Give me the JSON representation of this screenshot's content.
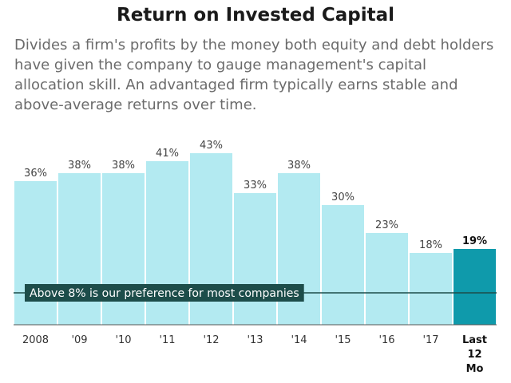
{
  "title": "Return on Invested Capital",
  "subtitle": "Divides a firm's profits by the money both equity and debt holders have given the company to gauge management's capital allocation skill. An advantaged firm typically earns stable and above-average returns over time.",
  "colors": {
    "bar": "#b3eaf1",
    "highlight": "#0f9aab",
    "reference_line": "#1d4d4a",
    "annotation_bg": "#1d4d4a"
  },
  "chart_data": {
    "type": "bar",
    "title": "Return on Invested Capital",
    "categories": [
      "2008",
      "'09",
      "'10",
      "'11",
      "'12",
      "'13",
      "'14",
      "'15",
      "'16",
      "'17",
      "Last 12 Mo"
    ],
    "category_lines": [
      [
        "2008"
      ],
      [
        "'09"
      ],
      [
        "'10"
      ],
      [
        "'11"
      ],
      [
        "'12"
      ],
      [
        "'13"
      ],
      [
        "'14"
      ],
      [
        "'15"
      ],
      [
        "'16"
      ],
      [
        "'17"
      ],
      [
        "Last",
        "12",
        "Mo"
      ]
    ],
    "values": [
      36,
      38,
      38,
      41,
      43,
      33,
      38,
      30,
      23,
      18,
      19
    ],
    "value_labels": [
      "36%",
      "38%",
      "38%",
      "41%",
      "43%",
      "33%",
      "38%",
      "30%",
      "23%",
      "18%",
      "19%"
    ],
    "highlight_index": 10,
    "ylim": [
      0,
      43
    ],
    "reference_line": {
      "value": 8,
      "label": "Above 8% is our preference for most companies"
    },
    "xlabel": "",
    "ylabel": "",
    "grid": false,
    "legend": "none"
  }
}
